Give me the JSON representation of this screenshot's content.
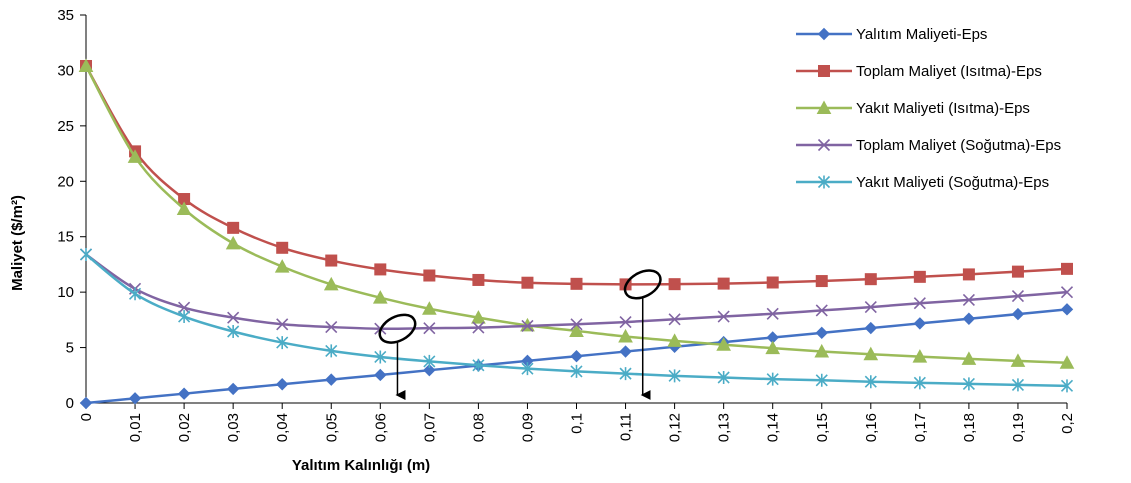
{
  "chart_data": {
    "type": "line",
    "title": "",
    "xlabel": "Yalıtım Kalınlığı (m)",
    "ylabel": "Maliyet ($/m²)",
    "ylim": [
      0,
      35
    ],
    "y_ticks": [
      0,
      5,
      10,
      15,
      20,
      25,
      30,
      35
    ],
    "grid": false,
    "legend_position": "right",
    "categories": [
      "0",
      "0,01",
      "0,02",
      "0,03",
      "0,04",
      "0,05",
      "0,06",
      "0,07",
      "0,08",
      "0,09",
      "0,1",
      "0,11",
      "0,12",
      "0,13",
      "0,14",
      "0,15",
      "0,16",
      "0,17",
      "0,18",
      "0,19",
      "0,2"
    ],
    "series": [
      {
        "name": "Yalıtım Maliyeti-Eps",
        "color": "#4472C4",
        "marker": "diamond",
        "values": [
          0,
          0.42,
          0.84,
          1.27,
          1.69,
          2.11,
          2.53,
          2.96,
          3.38,
          3.8,
          4.22,
          4.64,
          5.07,
          5.49,
          5.91,
          6.33,
          6.76,
          7.18,
          7.6,
          8.02,
          8.45
        ]
      },
      {
        "name": "Toplam Maliyet (Isıtma)-Eps",
        "color": "#C0504D",
        "marker": "square",
        "values": [
          30.4,
          22.7,
          18.4,
          15.8,
          14.0,
          12.85,
          12.05,
          11.5,
          11.1,
          10.85,
          10.75,
          10.7,
          10.72,
          10.77,
          10.87,
          11.0,
          11.17,
          11.38,
          11.6,
          11.85,
          12.1
        ]
      },
      {
        "name": "Yakıt Maliyeti (Isıtma)-Eps",
        "color": "#9BBB59",
        "marker": "triangle",
        "values": [
          30.4,
          22.2,
          17.5,
          14.4,
          12.3,
          10.7,
          9.5,
          8.5,
          7.7,
          7.0,
          6.5,
          6.0,
          5.6,
          5.25,
          4.95,
          4.65,
          4.4,
          4.18,
          3.98,
          3.8,
          3.63
        ]
      },
      {
        "name": "Toplam Maliyet (Soğutma)-Eps",
        "color": "#8064A2",
        "marker": "x",
        "values": [
          13.4,
          10.3,
          8.6,
          7.7,
          7.1,
          6.85,
          6.7,
          6.75,
          6.8,
          6.95,
          7.1,
          7.3,
          7.55,
          7.8,
          8.05,
          8.35,
          8.65,
          9.0,
          9.3,
          9.65,
          10.0
        ]
      },
      {
        "name": "Yakıt Maliyeti (Soğutma)-Eps",
        "color": "#4BACC6",
        "marker": "star",
        "values": [
          13.4,
          9.85,
          7.8,
          6.45,
          5.45,
          4.7,
          4.15,
          3.75,
          3.4,
          3.1,
          2.85,
          2.65,
          2.45,
          2.3,
          2.15,
          2.05,
          1.92,
          1.82,
          1.72,
          1.63,
          1.55
        ]
      }
    ],
    "annotations": [
      {
        "type": "ellipse-arrow",
        "x": 0.0635,
        "y": 6.7,
        "arrow_to_y": 0
      },
      {
        "type": "ellipse-arrow",
        "x": 0.1135,
        "y": 10.7,
        "arrow_to_y": 0
      }
    ]
  }
}
